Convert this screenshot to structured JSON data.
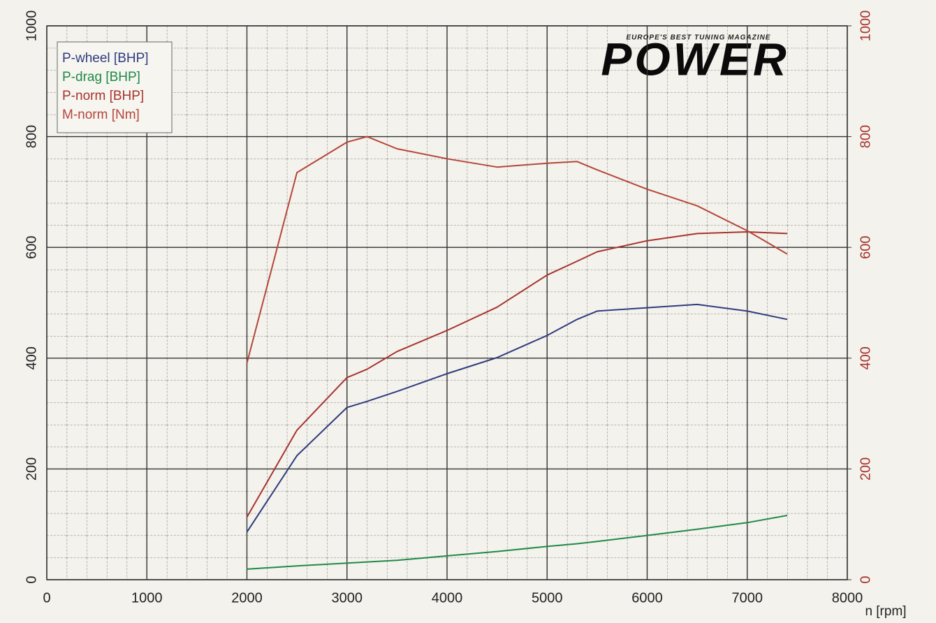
{
  "logo": {
    "tagline": "EUROPE'S BEST TUNING MAGAZINE",
    "name": "POWER"
  },
  "chart_data": {
    "type": "line",
    "x_label": "n [rpm]",
    "x": [
      2000,
      2500,
      3000,
      3200,
      3500,
      4000,
      4500,
      5000,
      5300,
      5500,
      6000,
      6500,
      7000,
      7400
    ],
    "series": [
      {
        "name": "P-wheel [BHP]",
        "color": "#2f3c7e",
        "values": [
          86,
          224,
          311,
          322,
          340,
          372,
          401,
          441,
          470,
          485,
          491,
          497,
          485,
          470
        ]
      },
      {
        "name": "P-drag [BHP]",
        "color": "#1f8a48",
        "values": [
          19,
          25,
          30,
          32,
          35,
          43,
          51,
          60,
          65,
          69,
          80,
          91,
          103,
          116
        ]
      },
      {
        "name": "P-norm [BHP]",
        "color": "#a8332e",
        "values": [
          113,
          270,
          365,
          380,
          412,
          450,
          492,
          550,
          575,
          592,
          612,
          625,
          628,
          625
        ]
      },
      {
        "name": "M-norm [Nm]",
        "color": "#b5463a",
        "axis": "y2",
        "values": [
          391,
          735,
          790,
          800,
          778,
          760,
          745,
          752,
          755,
          740,
          705,
          675,
          630,
          588
        ]
      }
    ],
    "xlim": [
      0,
      8000
    ],
    "xticks": [
      0,
      1000,
      2000,
      3000,
      4000,
      5000,
      6000,
      7000,
      8000
    ],
    "ylim": [
      0,
      1000
    ],
    "yticks": [
      0,
      200,
      400,
      600,
      800,
      1000
    ],
    "y2lim": [
      0,
      1000
    ],
    "y2ticks": [
      0,
      200,
      400,
      600,
      800,
      1000
    ],
    "y2_color": "#a8332e",
    "grid": true,
    "legend": "top-left"
  }
}
